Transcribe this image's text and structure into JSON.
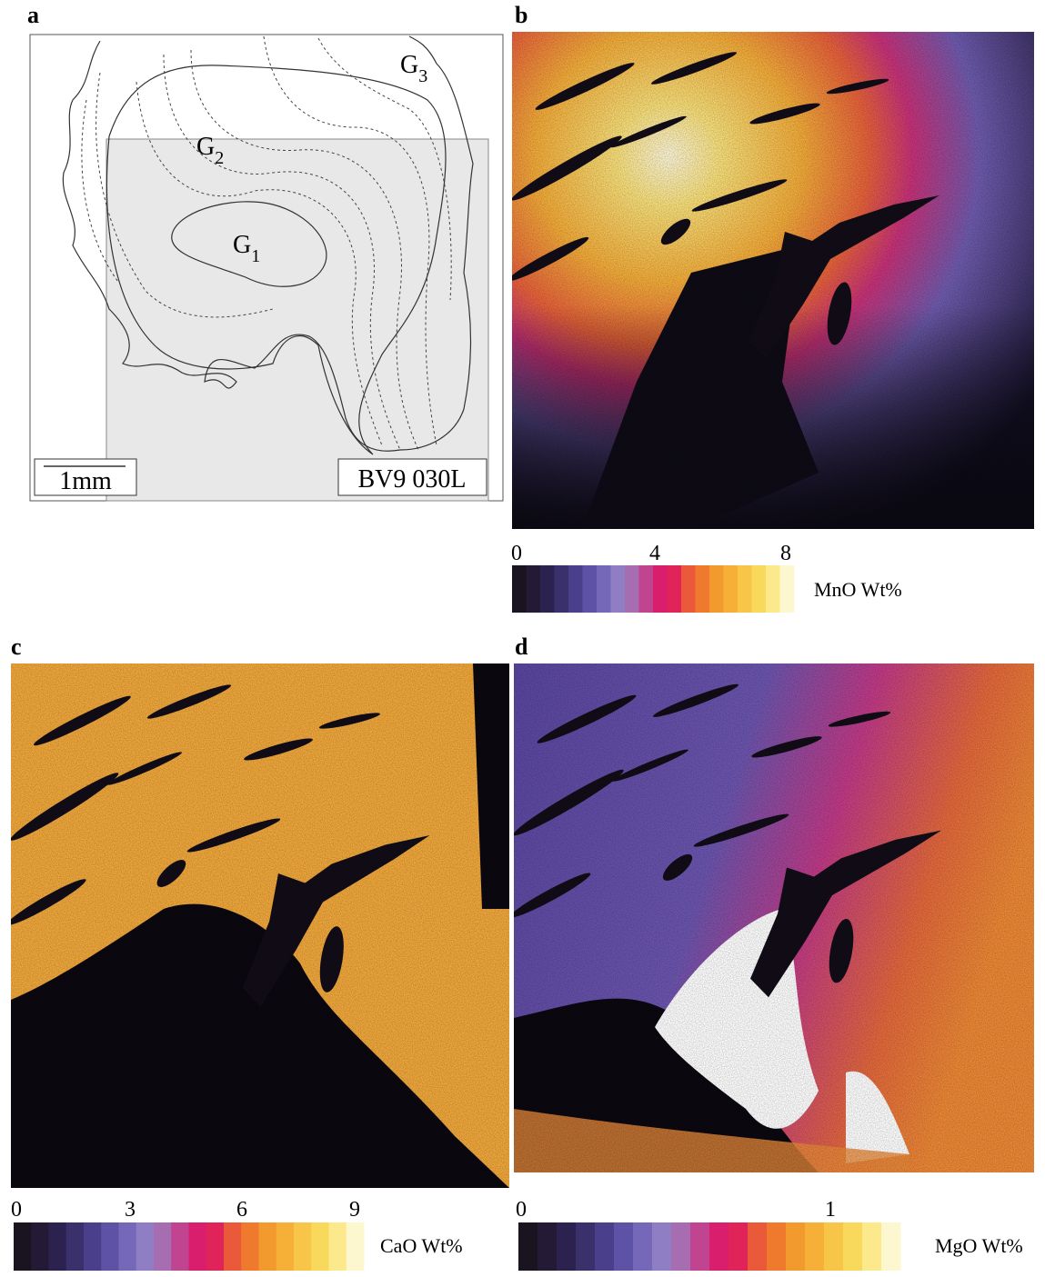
{
  "panels": [
    {
      "label": "a",
      "zones": [
        {
          "label": "G",
          "subscript": "3"
        },
        {
          "label": "G",
          "subscript": "2"
        },
        {
          "label": "G",
          "subscript": "1"
        }
      ],
      "scale_bar": "1mm",
      "sample": "BV9 030L"
    },
    {
      "label": "b",
      "colorbar": {
        "ticks": [
          0,
          4,
          8
        ],
        "label": "MnO Wt%"
      }
    },
    {
      "label": "c",
      "colorbar": {
        "ticks": [
          0,
          3,
          6,
          9
        ],
        "label": "CaO Wt%"
      }
    },
    {
      "label": "d",
      "colorbar": {
        "ticks": [
          0,
          1
        ],
        "label": "MgO Wt%"
      }
    }
  ]
}
